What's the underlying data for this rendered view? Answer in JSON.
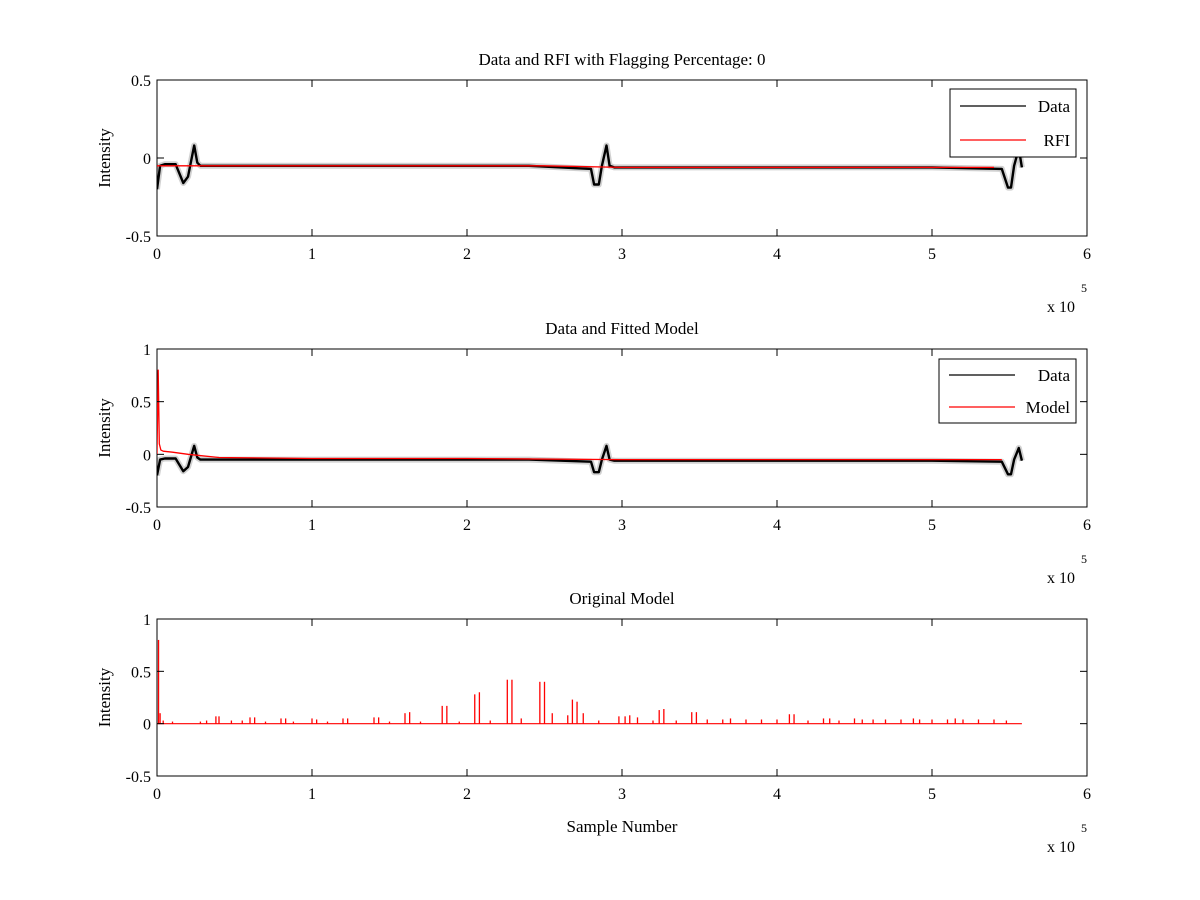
{
  "figure": {
    "background": "#ffffff",
    "exponent_label": "x 10",
    "exponent_power": "5"
  },
  "chart_data": [
    {
      "type": "line",
      "title": "Data and RFI with Flagging Percentage: 0",
      "ylabel": "Intensity",
      "xlabel": "",
      "xlim": [
        0,
        600000
      ],
      "ylim": [
        -0.5,
        0.5
      ],
      "xticks": [
        0,
        100000,
        200000,
        300000,
        400000,
        500000,
        600000
      ],
      "xtick_labels": [
        "0",
        "1",
        "2",
        "3",
        "4",
        "5",
        "6"
      ],
      "yticks": [
        -0.5,
        0,
        0.5
      ],
      "ytick_labels": [
        "-0.5",
        "0",
        "0.5"
      ],
      "legend": {
        "placement": "top-right",
        "entries": [
          "Data",
          "RFI"
        ]
      },
      "series": [
        {
          "name": "Data",
          "color": "#000000",
          "x": [
            0,
            2000,
            5000,
            12000,
            17000,
            20000,
            24000,
            26000,
            28000,
            40000,
            100000,
            180000,
            240000,
            280000,
            282000,
            285000,
            287000,
            290000,
            292000,
            295000,
            320000,
            400000,
            450000,
            500000,
            545000,
            549000,
            551000,
            553000,
            556000,
            558000
          ],
          "y": [
            -0.2,
            -0.05,
            -0.04,
            -0.04,
            -0.16,
            -0.12,
            0.08,
            -0.03,
            -0.05,
            -0.05,
            -0.05,
            -0.05,
            -0.05,
            -0.07,
            -0.17,
            -0.17,
            -0.05,
            0.08,
            -0.05,
            -0.06,
            -0.06,
            -0.06,
            -0.06,
            -0.06,
            -0.07,
            -0.19,
            -0.19,
            -0.05,
            0.06,
            -0.06
          ]
        },
        {
          "name": "RFI",
          "color": "#ff0000",
          "x": [
            0,
            30000,
            60000,
            100000,
            150000,
            200000,
            250000,
            300000,
            350000,
            400000,
            450000,
            500000,
            540000
          ],
          "y": [
            -0.05,
            -0.05,
            -0.05,
            -0.05,
            -0.05,
            -0.05,
            -0.05,
            -0.06,
            -0.06,
            -0.06,
            -0.06,
            -0.06,
            -0.06
          ]
        }
      ]
    },
    {
      "type": "line",
      "title": "Data and Fitted Model",
      "ylabel": "Intensity",
      "xlabel": "",
      "xlim": [
        0,
        600000
      ],
      "ylim": [
        -0.5,
        1
      ],
      "xticks": [
        0,
        100000,
        200000,
        300000,
        400000,
        500000,
        600000
      ],
      "xtick_labels": [
        "0",
        "1",
        "2",
        "3",
        "4",
        "5",
        "6"
      ],
      "yticks": [
        -0.5,
        0,
        0.5,
        1
      ],
      "ytick_labels": [
        "-0.5",
        "0",
        "0.5",
        "1"
      ],
      "legend": {
        "placement": "top-right",
        "entries": [
          "Data",
          "Model"
        ]
      },
      "series": [
        {
          "name": "Data",
          "color": "#000000",
          "x": [
            0,
            2000,
            5000,
            12000,
            17000,
            20000,
            24000,
            26000,
            28000,
            40000,
            100000,
            180000,
            240000,
            280000,
            282000,
            285000,
            287000,
            290000,
            292000,
            295000,
            320000,
            400000,
            450000,
            500000,
            545000,
            549000,
            551000,
            553000,
            556000,
            558000
          ],
          "y": [
            -0.2,
            -0.05,
            -0.04,
            -0.04,
            -0.16,
            -0.12,
            0.08,
            -0.03,
            -0.05,
            -0.05,
            -0.05,
            -0.05,
            -0.05,
            -0.07,
            -0.17,
            -0.17,
            -0.05,
            0.08,
            -0.05,
            -0.06,
            -0.06,
            -0.06,
            -0.06,
            -0.06,
            -0.07,
            -0.19,
            -0.19,
            -0.05,
            0.06,
            -0.06
          ]
        },
        {
          "name": "Model",
          "color": "#ff0000",
          "x": [
            0,
            800,
            1500,
            2500,
            4000,
            10000,
            20000,
            40000,
            100000,
            200000,
            300000,
            400000,
            500000,
            545000
          ],
          "y": [
            0,
            0.8,
            0.1,
            0.04,
            0.03,
            0.02,
            0,
            -0.03,
            -0.04,
            -0.04,
            -0.05,
            -0.05,
            -0.05,
            -0.05
          ]
        }
      ]
    },
    {
      "type": "line",
      "title": "Original Model",
      "ylabel": "Intensity",
      "xlabel": "Sample Number",
      "xlim": [
        0,
        600000
      ],
      "ylim": [
        -0.5,
        1
      ],
      "xticks": [
        0,
        100000,
        200000,
        300000,
        400000,
        500000,
        600000
      ],
      "xtick_labels": [
        "0",
        "1",
        "2",
        "3",
        "4",
        "5",
        "6"
      ],
      "yticks": [
        -0.5,
        0,
        0.5,
        1
      ],
      "ytick_labels": [
        "-0.5",
        "0",
        "0.5",
        "1"
      ],
      "series": [
        {
          "color": "#ff0000",
          "baseline": 0,
          "x_end": 558000,
          "spikes": [
            [
              1000,
              0.8
            ],
            [
              2000,
              0.1
            ],
            [
              4000,
              0.03
            ],
            [
              10000,
              0.02
            ],
            [
              28000,
              0.02
            ],
            [
              32000,
              0.03
            ],
            [
              38000,
              0.07
            ],
            [
              40000,
              0.07
            ],
            [
              48000,
              0.03
            ],
            [
              55000,
              0.03
            ],
            [
              60000,
              0.06
            ],
            [
              63000,
              0.06
            ],
            [
              70000,
              0.02
            ],
            [
              80000,
              0.05
            ],
            [
              83000,
              0.05
            ],
            [
              88000,
              0.02
            ],
            [
              100000,
              0.05
            ],
            [
              103000,
              0.04
            ],
            [
              110000,
              0.02
            ],
            [
              120000,
              0.05
            ],
            [
              123000,
              0.05
            ],
            [
              140000,
              0.06
            ],
            [
              143000,
              0.06
            ],
            [
              150000,
              0.02
            ],
            [
              160000,
              0.1
            ],
            [
              163000,
              0.11
            ],
            [
              170000,
              0.02
            ],
            [
              184000,
              0.17
            ],
            [
              187000,
              0.17
            ],
            [
              195000,
              0.02
            ],
            [
              205000,
              0.28
            ],
            [
              208000,
              0.3
            ],
            [
              215000,
              0.03
            ],
            [
              226000,
              0.42
            ],
            [
              229000,
              0.42
            ],
            [
              235000,
              0.05
            ],
            [
              247000,
              0.4
            ],
            [
              250000,
              0.4
            ],
            [
              255000,
              0.1
            ],
            [
              265000,
              0.08
            ],
            [
              268000,
              0.23
            ],
            [
              271000,
              0.21
            ],
            [
              275000,
              0.1
            ],
            [
              285000,
              0.03
            ],
            [
              298000,
              0.07
            ],
            [
              302000,
              0.07
            ],
            [
              305000,
              0.08
            ],
            [
              310000,
              0.06
            ],
            [
              320000,
              0.03
            ],
            [
              324000,
              0.13
            ],
            [
              327000,
              0.14
            ],
            [
              335000,
              0.03
            ],
            [
              345000,
              0.11
            ],
            [
              348000,
              0.11
            ],
            [
              355000,
              0.04
            ],
            [
              365000,
              0.04
            ],
            [
              370000,
              0.05
            ],
            [
              380000,
              0.04
            ],
            [
              390000,
              0.04
            ],
            [
              400000,
              0.04
            ],
            [
              408000,
              0.09
            ],
            [
              411000,
              0.09
            ],
            [
              420000,
              0.03
            ],
            [
              430000,
              0.05
            ],
            [
              434000,
              0.05
            ],
            [
              440000,
              0.03
            ],
            [
              450000,
              0.05
            ],
            [
              455000,
              0.04
            ],
            [
              462000,
              0.04
            ],
            [
              470000,
              0.04
            ],
            [
              480000,
              0.04
            ],
            [
              488000,
              0.05
            ],
            [
              492000,
              0.04
            ],
            [
              500000,
              0.04
            ],
            [
              510000,
              0.04
            ],
            [
              515000,
              0.05
            ],
            [
              520000,
              0.04
            ],
            [
              530000,
              0.04
            ],
            [
              540000,
              0.04
            ],
            [
              548000,
              0.03
            ]
          ]
        }
      ]
    }
  ]
}
